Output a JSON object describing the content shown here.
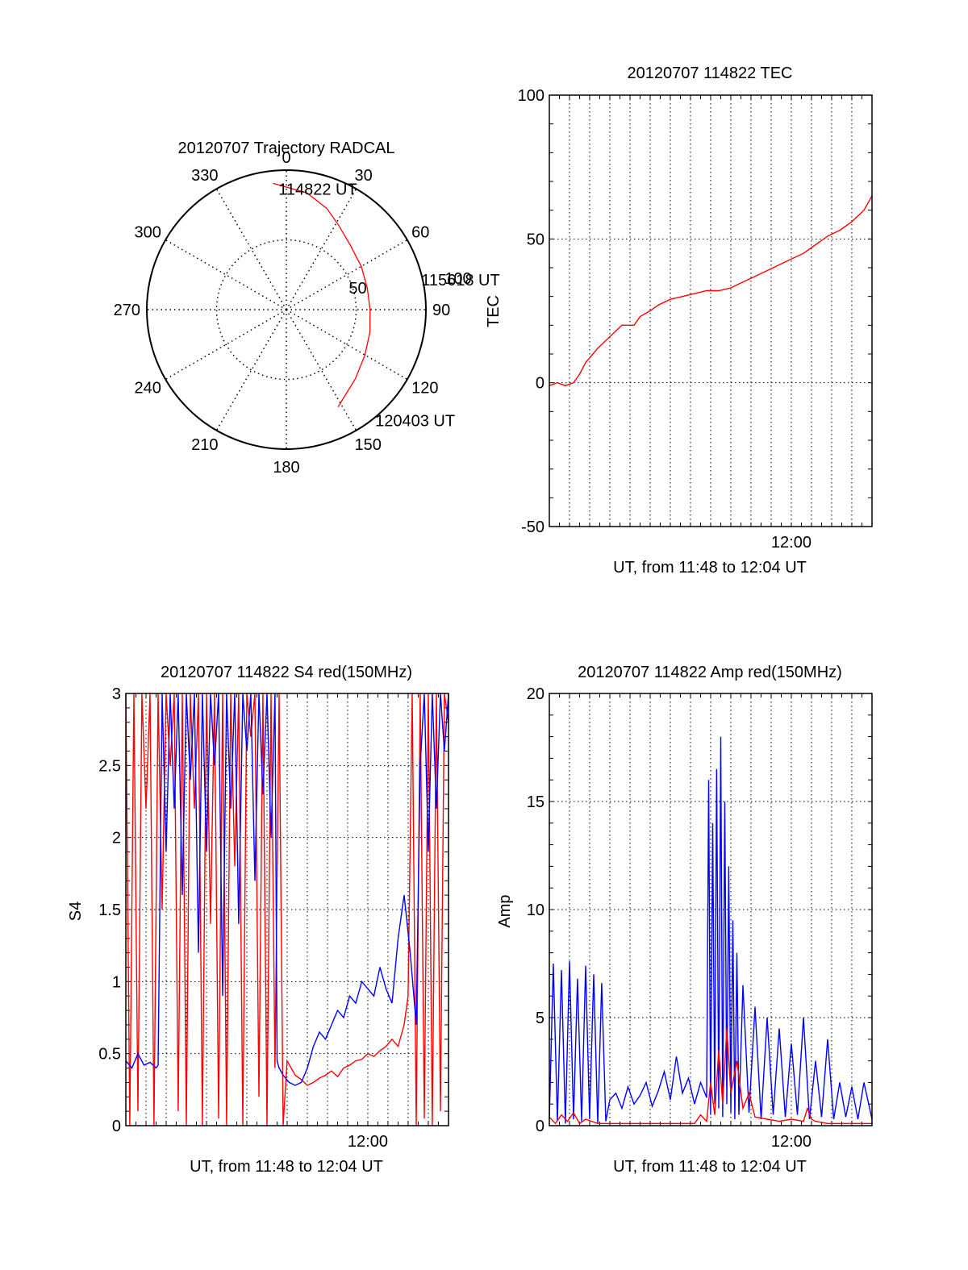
{
  "colors": {
    "red": "#ff0000",
    "blue": "#0000ff",
    "axis": "#000000",
    "grid": "#000000"
  },
  "chart_data": [
    {
      "id": "trajectory",
      "type": "polar",
      "title": "20120707 Trajectory RADCAL",
      "angle_labels": [
        "0",
        "30",
        "60",
        "90",
        "120",
        "150",
        "180",
        "210",
        "240",
        "270",
        "300",
        "330"
      ],
      "radial_labels": [
        "50",
        "100"
      ],
      "rlim": [
        0,
        100
      ],
      "grid": true,
      "track": {
        "color": "red",
        "points": [
          [
            -6,
            91
          ],
          [
            10,
            85
          ],
          [
            22,
            78
          ],
          [
            32,
            71
          ],
          [
            45,
            65
          ],
          [
            60,
            62
          ],
          [
            75,
            60
          ],
          [
            90,
            60
          ],
          [
            105,
            62
          ],
          [
            120,
            65
          ],
          [
            135,
            70
          ],
          [
            148,
            76
          ],
          [
            152,
            79
          ]
        ]
      },
      "annotations": [
        {
          "text": "114822 UT",
          "az": -3,
          "r": 86
        },
        {
          "text": "115618 UT",
          "az": 78,
          "r": 100
        },
        {
          "text": "120403 UT",
          "az": 141,
          "r": 103
        }
      ]
    },
    {
      "id": "tec",
      "type": "line",
      "title": "20120707 114822 TEC",
      "ylabel": "TEC",
      "xlabel": "UT, from 11:48 to 12:04 UT",
      "x_tick_labels": [
        {
          "x": 12.0,
          "label": "12:00"
        }
      ],
      "xlim": [
        11.8,
        12.0667
      ],
      "ylim": [
        -50,
        100
      ],
      "y_ticks": [
        -50,
        0,
        50,
        100
      ],
      "grid": true,
      "series": [
        {
          "color": "red",
          "x": [
            11.8,
            11.8067,
            11.8133,
            11.82,
            11.825,
            11.83,
            11.84,
            11.85,
            11.86,
            11.87,
            11.875,
            11.8833,
            11.89,
            11.9,
            11.91,
            11.92,
            11.93,
            11.94,
            11.95,
            11.96,
            11.97,
            11.98,
            11.99,
            12.0,
            12.01,
            12.02,
            12.03,
            12.04,
            12.05,
            12.06,
            12.0667
          ],
          "y": [
            -1,
            0,
            -1,
            0,
            3,
            7,
            12,
            16,
            20,
            20,
            23,
            25,
            27,
            29,
            30,
            31,
            32,
            32,
            33,
            35,
            37,
            39,
            41,
            43,
            45,
            48,
            51,
            53,
            56,
            60,
            65
          ]
        }
      ]
    },
    {
      "id": "s4",
      "type": "line",
      "title": "20120707 114822 S4 red(150MHz)",
      "ylabel": "S4",
      "xlabel": "UT, from 11:48 to 12:04 UT",
      "x_tick_labels": [
        {
          "x": 12.0,
          "label": "12:00"
        }
      ],
      "xlim": [
        11.8,
        12.0667
      ],
      "ylim": [
        0,
        3
      ],
      "y_ticks": [
        0,
        0.5,
        1,
        1.5,
        2,
        2.5,
        3
      ],
      "y_tick_labels": [
        "0",
        "0.5",
        "1",
        "1.5",
        "2",
        "2.5",
        "3"
      ],
      "grid": true,
      "series": [
        {
          "color": "red",
          "x": [
            11.8,
            11.8033,
            11.8067,
            11.81,
            11.8133,
            11.8167,
            11.82,
            11.8233,
            11.8267,
            11.83,
            11.8333,
            11.8367,
            11.84,
            11.8433,
            11.8467,
            11.85,
            11.8533,
            11.8567,
            11.86,
            11.8633,
            11.8667,
            11.87,
            11.8733,
            11.8767,
            11.88,
            11.8833,
            11.8867,
            11.89,
            11.8933,
            11.8967,
            11.9,
            11.9033,
            11.9067,
            11.91,
            11.9133,
            11.9167,
            11.92,
            11.9233,
            11.9267,
            11.93,
            11.9333,
            11.9367,
            11.94,
            11.945,
            11.95,
            11.955,
            11.96,
            11.965,
            11.97,
            11.975,
            11.98,
            11.985,
            11.99,
            11.995,
            12.0,
            12.005,
            12.01,
            12.015,
            12.02,
            12.025,
            12.03,
            12.0333,
            12.0367,
            12.04,
            12.0433,
            12.0467,
            12.05,
            12.0533,
            12.0567,
            12.06,
            12.0633,
            12.0667
          ],
          "y": [
            3,
            0,
            3,
            0.1,
            3,
            2.2,
            3,
            0,
            3,
            1.5,
            3,
            2.5,
            3,
            0.1,
            3,
            0,
            3,
            2.2,
            3,
            0,
            3,
            1.4,
            3,
            0.05,
            3,
            0,
            3,
            1.8,
            3,
            0,
            3,
            2.7,
            3,
            0.2,
            3,
            0,
            3,
            0.4,
            3,
            0,
            0.45,
            0.4,
            0.35,
            0.32,
            0.28,
            0.3,
            0.33,
            0.35,
            0.38,
            0.34,
            0.4,
            0.42,
            0.45,
            0.46,
            0.5,
            0.48,
            0.52,
            0.55,
            0.6,
            0.55,
            0.7,
            0.9,
            3,
            0,
            3,
            0.05,
            3,
            0,
            3,
            0.1,
            3,
            2.8
          ]
        },
        {
          "color": "blue",
          "x": [
            11.8,
            11.805,
            11.81,
            11.815,
            11.82,
            11.825,
            11.8267,
            11.83,
            11.8333,
            11.8367,
            11.84,
            11.8433,
            11.8467,
            11.85,
            11.8533,
            11.8567,
            11.86,
            11.8633,
            11.8667,
            11.87,
            11.8733,
            11.8767,
            11.88,
            11.8833,
            11.8867,
            11.89,
            11.8933,
            11.8967,
            11.9,
            11.9033,
            11.9067,
            11.91,
            11.9133,
            11.9167,
            11.92,
            11.9233,
            11.925,
            11.9267,
            11.93,
            11.935,
            11.94,
            11.945,
            11.95,
            11.955,
            11.96,
            11.965,
            11.97,
            11.975,
            11.98,
            11.985,
            11.99,
            11.995,
            12.0,
            12.005,
            12.01,
            12.015,
            12.02,
            12.025,
            12.03,
            12.035,
            12.04,
            12.0433,
            12.0467,
            12.05,
            12.0533,
            12.0567,
            12.06,
            12.0633,
            12.0667
          ],
          "y": [
            0.45,
            0.4,
            0.5,
            0.42,
            0.44,
            0.4,
            0.42,
            3,
            1.9,
            3,
            2.2,
            3,
            1.6,
            3,
            2.4,
            3,
            1.2,
            3,
            1.9,
            3,
            2.5,
            3,
            0.9,
            3,
            2.2,
            3,
            1.4,
            3,
            2.6,
            3,
            1.7,
            3,
            2.3,
            3,
            2.0,
            3,
            0.45,
            0.4,
            0.35,
            0.3,
            0.28,
            0.3,
            0.4,
            0.55,
            0.65,
            0.6,
            0.7,
            0.8,
            0.75,
            0.9,
            0.85,
            1.0,
            0.95,
            0.9,
            1.1,
            0.95,
            0.85,
            1.3,
            1.6,
            1.2,
            0.7,
            2.5,
            3,
            1.9,
            3,
            2.2,
            3,
            2.6,
            3
          ]
        }
      ]
    },
    {
      "id": "amp",
      "type": "line",
      "title": "20120707 114822 Amp red(150MHz)",
      "ylabel": "Amp",
      "xlabel": "UT, from 11:48 to 12:04 UT",
      "x_tick_labels": [
        {
          "x": 12.0,
          "label": "12:00"
        }
      ],
      "xlim": [
        11.8,
        12.0667
      ],
      "ylim": [
        0,
        20
      ],
      "y_ticks": [
        0,
        5,
        10,
        15,
        20
      ],
      "grid": true,
      "series": [
        {
          "color": "blue",
          "x": [
            11.8,
            11.8033,
            11.8067,
            11.81,
            11.8133,
            11.8167,
            11.82,
            11.8233,
            11.8267,
            11.83,
            11.8333,
            11.8367,
            11.84,
            11.8433,
            11.8467,
            11.85,
            11.855,
            11.86,
            11.865,
            11.87,
            11.875,
            11.88,
            11.885,
            11.89,
            11.895,
            11.9,
            11.905,
            11.91,
            11.915,
            11.92,
            11.925,
            11.93,
            11.9317,
            11.9333,
            11.935,
            11.9367,
            11.9383,
            11.94,
            11.9417,
            11.9433,
            11.945,
            11.9467,
            11.9483,
            11.95,
            11.9517,
            11.9533,
            11.955,
            11.9567,
            11.96,
            11.965,
            11.97,
            11.975,
            11.98,
            11.985,
            11.99,
            11.995,
            12.0,
            12.005,
            12.01,
            12.015,
            12.02,
            12.025,
            12.03,
            12.035,
            12.04,
            12.045,
            12.05,
            12.055,
            12.06,
            12.0667
          ],
          "y": [
            0.3,
            7.5,
            0.2,
            7.2,
            0.1,
            7.6,
            0.3,
            6.8,
            0.2,
            7.4,
            0.3,
            7.0,
            0.1,
            6.6,
            0.2,
            1.2,
            1.5,
            0.8,
            1.8,
            1.0,
            1.4,
            2.0,
            0.9,
            1.6,
            2.5,
            1.2,
            3.2,
            1.5,
            2.2,
            1.0,
            2.0,
            1.3,
            16.0,
            0.5,
            14.0,
            1.0,
            16.5,
            0.8,
            18.0,
            0.4,
            15.0,
            1.0,
            12.0,
            0.6,
            9.5,
            0.3,
            8.0,
            0.5,
            6.5,
            0.6,
            5.5,
            0.3,
            5.0,
            0.5,
            4.5,
            0.4,
            3.8,
            0.5,
            5.0,
            0.3,
            3.0,
            0.4,
            4.0,
            0.3,
            2.0,
            0.4,
            1.8,
            0.3,
            2.0,
            0.3
          ]
        },
        {
          "color": "red",
          "x": [
            11.8,
            11.805,
            11.81,
            11.815,
            11.82,
            11.825,
            11.83,
            11.84,
            11.85,
            11.86,
            11.87,
            11.88,
            11.89,
            11.9,
            11.91,
            11.92,
            11.925,
            11.93,
            11.9333,
            11.9367,
            11.94,
            11.9433,
            11.9467,
            11.95,
            11.955,
            11.96,
            11.965,
            11.97,
            11.98,
            11.99,
            12.0,
            12.01,
            12.0133,
            12.0167,
            12.02,
            12.03,
            12.04,
            12.05,
            12.06,
            12.0667
          ],
          "y": [
            0.4,
            0.1,
            0.5,
            0.2,
            0.6,
            0.1,
            0.3,
            0.1,
            0.1,
            0.1,
            0.1,
            0.1,
            0.1,
            0.1,
            0.1,
            0.1,
            0.5,
            0.2,
            2.0,
            0.5,
            3.5,
            1.0,
            4.5,
            1.5,
            3.0,
            0.8,
            1.5,
            0.4,
            0.3,
            0.2,
            0.3,
            0.2,
            0.8,
            0.3,
            0.2,
            0.1,
            0.1,
            0.1,
            0.1,
            0.1
          ]
        }
      ]
    }
  ]
}
